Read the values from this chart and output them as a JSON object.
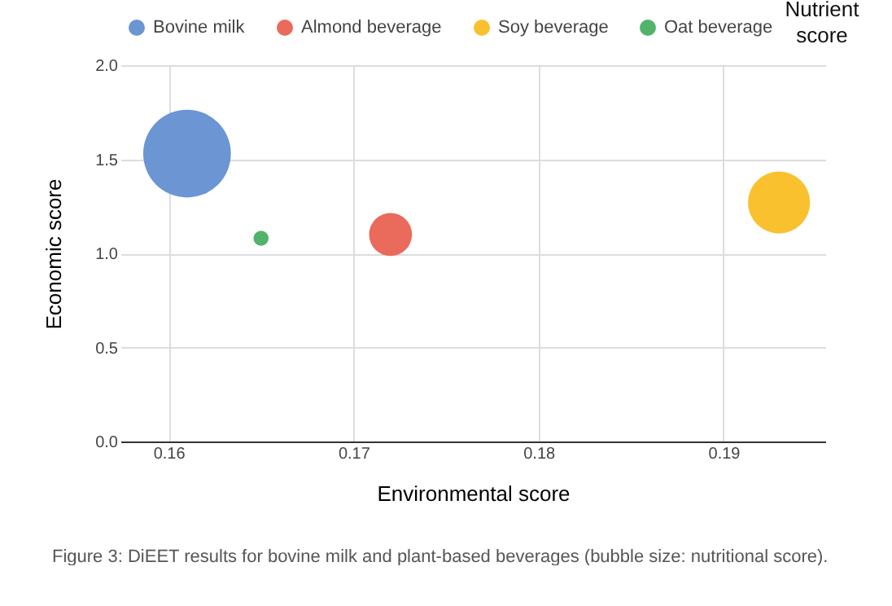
{
  "chart_data": {
    "type": "bubble",
    "xlabel": "Environmental score",
    "ylabel": "Economic score",
    "xlim": [
      0.1574,
      0.1955
    ],
    "xticks": [
      0.16,
      0.17,
      0.18,
      0.19
    ],
    "ylim": [
      0,
      2
    ],
    "yticks": [
      {
        "value": 0,
        "label": "0.0"
      },
      0.5,
      {
        "value": 1,
        "label": "1.0"
      },
      1.5,
      {
        "value": 2,
        "label": "2.0"
      }
    ],
    "grid": true,
    "legend": "top",
    "series": [
      {
        "name": "Bovine milk",
        "color": "#6b95d3",
        "x": [
          0.161
        ],
        "values": [
          1.53
        ],
        "sizes": [
          1
        ]
      },
      {
        "name": "Almond beverage",
        "color": "#ea6b5b",
        "x": [
          0.172
        ],
        "values": [
          1.1
        ],
        "sizes": [
          0.24
        ]
      },
      {
        "name": "Soy beverage",
        "color": "#f9c12e",
        "x": [
          0.193
        ],
        "values": [
          1.27
        ],
        "sizes": [
          0.5
        ]
      },
      {
        "name": "Oat beverage",
        "color": "#52b36a",
        "x": [
          0.165
        ],
        "values": [
          1.08
        ],
        "sizes": [
          0.03
        ]
      }
    ],
    "annotations": [
      "Nutrient score",
      "Figure 3:    DiEET results for bovine milk and plant-based beverages (bubble size: nutritional score)."
    ]
  }
}
